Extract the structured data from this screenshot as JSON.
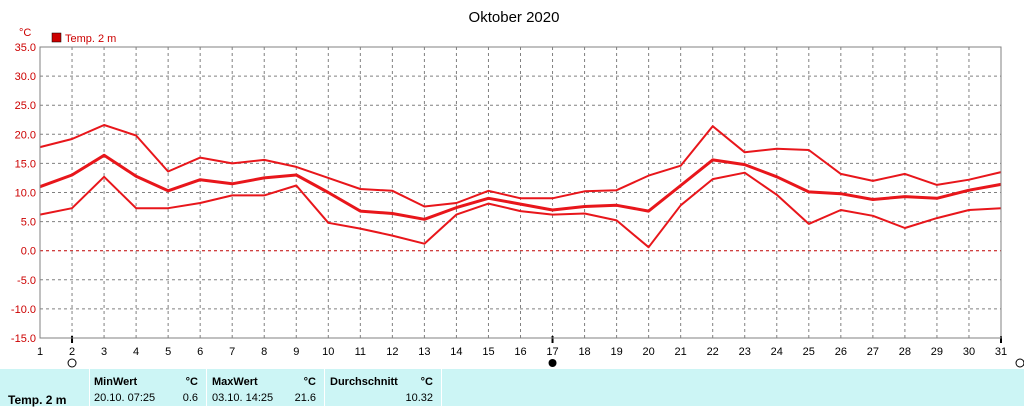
{
  "chart_data": {
    "type": "line",
    "title": "Oktober 2020",
    "ylabel": "°C",
    "legend": "Temp. 2 m",
    "legend_color": "#cc0000",
    "line_color": "#e8161b",
    "grid": true,
    "x_ticks": [
      "1",
      "2",
      "3",
      "4",
      "5",
      "6",
      "7",
      "8",
      "9",
      "10",
      "11",
      "12",
      "13",
      "14",
      "15",
      "16",
      "17",
      "18",
      "19",
      "20",
      "21",
      "22",
      "23",
      "24",
      "25",
      "26",
      "27",
      "28",
      "29",
      "30",
      "31"
    ],
    "y_ticks": [
      "35.0",
      "30.0",
      "25.0",
      "20.0",
      "15.0",
      "10.0",
      "5.0",
      "0.0",
      "-5.0",
      "-10.0",
      "-15.0"
    ],
    "xlim": [
      1,
      31
    ],
    "ylim": [
      -15,
      35
    ],
    "x": [
      1,
      2,
      3,
      4,
      5,
      6,
      7,
      8,
      9,
      10,
      11,
      12,
      13,
      14,
      15,
      16,
      17,
      18,
      19,
      20,
      21,
      22,
      23,
      24,
      25,
      26,
      27,
      28,
      29,
      30,
      31
    ],
    "series": [
      {
        "values": [
          17.8,
          19.2,
          21.6,
          19.8,
          13.6,
          16.0,
          15.0,
          15.6,
          14.4,
          12.5,
          10.6,
          10.3,
          7.6,
          8.2,
          10.3,
          9.0,
          9.0,
          10.2,
          10.4,
          12.9,
          14.6,
          21.4,
          16.9,
          17.5,
          17.3,
          13.2,
          12.0,
          13.2,
          11.3,
          12.2,
          13.5
        ],
        "width": 2
      },
      {
        "values": [
          11.0,
          13.0,
          16.4,
          12.8,
          10.3,
          12.2,
          11.5,
          12.5,
          13.0,
          10.0,
          6.8,
          6.4,
          5.4,
          7.4,
          9.0,
          8.0,
          7.0,
          7.6,
          7.8,
          6.8,
          11.2,
          15.6,
          14.8,
          12.7,
          10.1,
          9.8,
          8.8,
          9.3,
          9.0,
          10.4,
          11.4
        ],
        "width": 3
      },
      {
        "values": [
          6.2,
          7.3,
          12.7,
          7.3,
          7.3,
          8.2,
          9.5,
          9.5,
          11.2,
          4.8,
          3.8,
          2.6,
          1.2,
          6.2,
          8.1,
          6.8,
          6.2,
          6.4,
          5.2,
          0.6,
          7.8,
          12.3,
          13.4,
          9.6,
          4.6,
          7.0,
          6.0,
          3.9,
          5.6,
          7.0,
          7.3
        ],
        "width": 2
      }
    ],
    "markers": [
      {
        "x": 2,
        "symbol": "first-quarter-moon"
      },
      {
        "x": 17,
        "symbol": "new-moon"
      },
      {
        "x": 31,
        "symbol": "full-moon"
      }
    ]
  },
  "stats": {
    "name": "Temp. 2 m",
    "min_header": "MinWert",
    "min_unit": "°C",
    "min_date": "20.10.  07:25",
    "min_value": "0.6",
    "max_header": "MaxWert",
    "max_unit": "°C",
    "max_date": "03.10.  14:25",
    "max_value": "21.6",
    "avg_header": "Durchschnitt",
    "avg_unit": "°C",
    "avg_value": "10.32"
  }
}
